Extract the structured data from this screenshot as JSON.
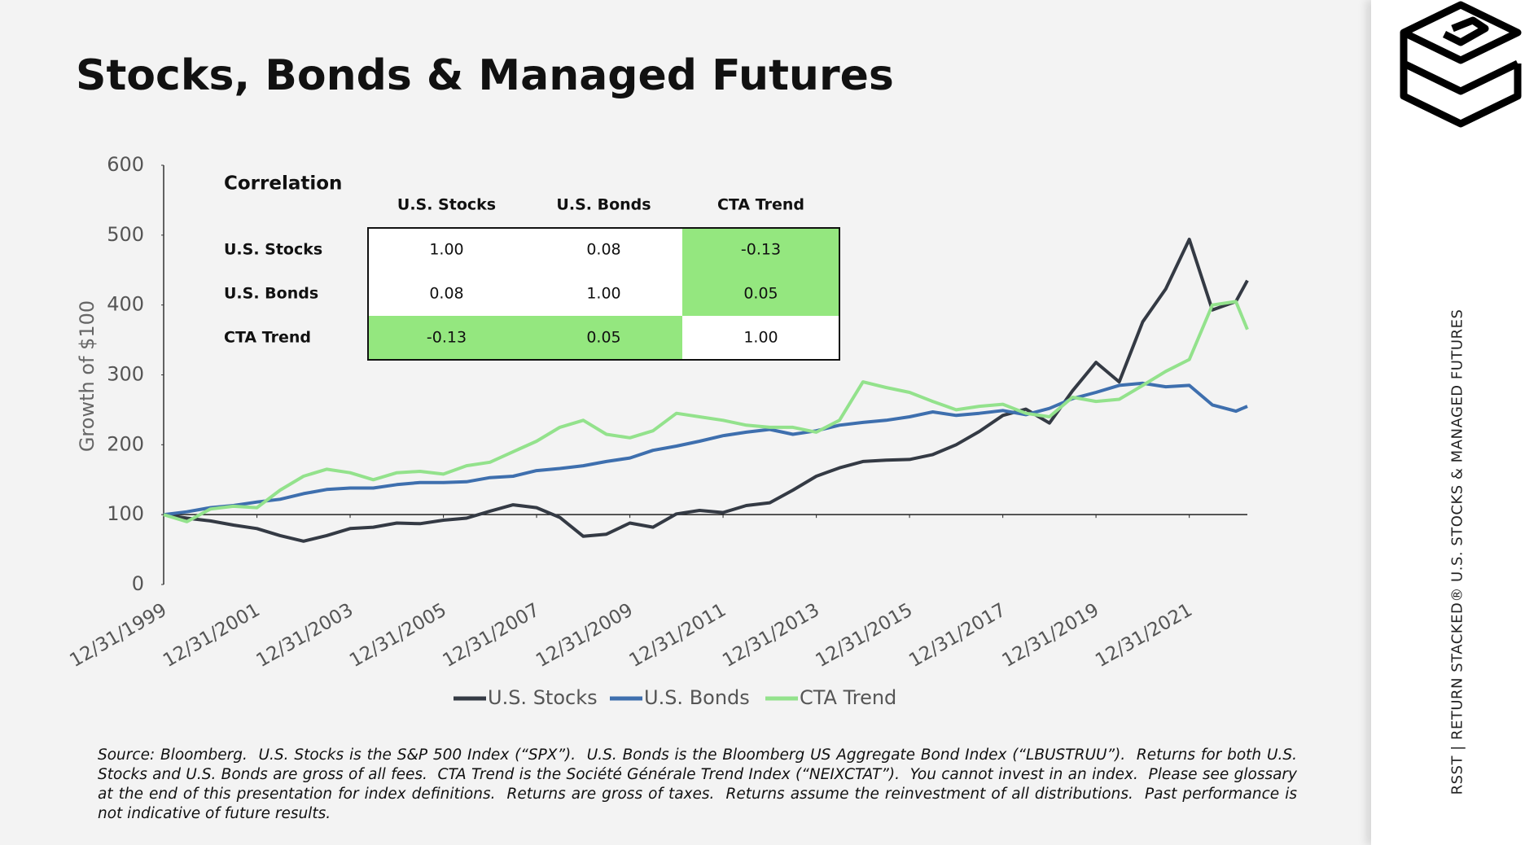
{
  "title": "Stocks, Bonds & Managed Futures",
  "chart_data": {
    "type": "line",
    "ylabel": "Growth of $100",
    "x": [
      "12/31/1999",
      "6/30/2000",
      "12/31/2000",
      "6/30/2001",
      "12/31/2001",
      "6/30/2002",
      "12/31/2002",
      "6/30/2003",
      "12/31/2003",
      "6/30/2004",
      "12/31/2004",
      "6/30/2005",
      "12/31/2005",
      "6/30/2006",
      "12/31/2006",
      "6/30/2007",
      "12/31/2007",
      "6/30/2008",
      "12/31/2008",
      "6/30/2009",
      "12/31/2009",
      "6/30/2010",
      "12/31/2010",
      "6/30/2011",
      "12/31/2011",
      "6/30/2012",
      "12/31/2012",
      "6/30/2013",
      "12/31/2013",
      "6/30/2014",
      "12/31/2014",
      "6/30/2015",
      "12/31/2015",
      "6/30/2016",
      "12/31/2016",
      "6/30/2017",
      "12/31/2017",
      "6/30/2018",
      "12/31/2018",
      "6/30/2019",
      "12/31/2019",
      "6/30/2020",
      "12/31/2020",
      "6/30/2021",
      "12/31/2021",
      "6/30/2022",
      "12/31/2022",
      "3/31/2023"
    ],
    "series": [
      {
        "name": "U.S. Stocks",
        "color": "#343a44",
        "values": [
          100,
          95,
          91,
          85,
          80,
          70,
          62,
          70,
          80,
          82,
          88,
          87,
          92,
          95,
          105,
          114,
          110,
          96,
          69,
          72,
          88,
          82,
          101,
          106,
          103,
          113,
          117,
          135,
          155,
          167,
          176,
          178,
          179,
          186,
          200,
          219,
          242,
          251,
          231,
          277,
          318,
          290,
          376,
          423,
          494,
          393,
          405,
          435
        ]
      },
      {
        "name": "U.S. Bonds",
        "color": "#3e6fae",
        "values": [
          100,
          104,
          110,
          113,
          118,
          122,
          130,
          136,
          138,
          138,
          143,
          146,
          146,
          147,
          153,
          155,
          163,
          166,
          170,
          176,
          181,
          192,
          198,
          205,
          213,
          218,
          222,
          215,
          220,
          228,
          232,
          235,
          240,
          247,
          242,
          245,
          249,
          243,
          252,
          266,
          275,
          285,
          288,
          283,
          285,
          257,
          248,
          255
        ]
      },
      {
        "name": "CTA Trend",
        "color": "#93e28c",
        "values": [
          100,
          90,
          108,
          112,
          110,
          135,
          155,
          165,
          160,
          150,
          160,
          162,
          158,
          170,
          175,
          190,
          205,
          225,
          235,
          215,
          210,
          220,
          245,
          240,
          235,
          228,
          225,
          225,
          218,
          235,
          290,
          282,
          275,
          262,
          250,
          255,
          258,
          245,
          240,
          268,
          262,
          265,
          285,
          305,
          322,
          400,
          405,
          365
        ]
      }
    ],
    "xlim": [
      "12/31/1999",
      "3/31/2023"
    ],
    "xticks": [
      "12/31/1999",
      "12/31/2001",
      "12/31/2003",
      "12/31/2005",
      "12/31/2007",
      "12/31/2009",
      "12/31/2011",
      "12/31/2013",
      "12/31/2015",
      "12/31/2017",
      "12/31/2019",
      "12/31/2021"
    ],
    "ylim": [
      0,
      600
    ],
    "yticks": [
      0,
      100,
      200,
      300,
      400,
      500,
      600
    ],
    "xaxis_crosses": 100,
    "legend": "bottom"
  },
  "correlation": {
    "title": "Correlation",
    "columns": [
      "U.S. Stocks",
      "U.S. Bonds",
      "CTA Trend"
    ],
    "rows": [
      {
        "label": "U.S. Stocks",
        "values": [
          "1.00",
          "0.08",
          "-0.13"
        ]
      },
      {
        "label": "U.S. Bonds",
        "values": [
          "0.08",
          "1.00",
          "0.05"
        ]
      },
      {
        "label": "CTA Trend",
        "values": [
          "-0.13",
          "0.05",
          "1.00"
        ]
      }
    ],
    "highlight_color": "#94e77f",
    "highlight": [
      [
        0,
        2
      ],
      [
        1,
        2
      ],
      [
        2,
        0
      ],
      [
        2,
        1
      ]
    ]
  },
  "footnote": "Source: Bloomberg.  U.S. Stocks is the S&P 500 Index (“SPX”).  U.S. Bonds is the Bloomberg US Aggregate Bond Index (“LBUSTRUU”).  Returns for both U.S. Stocks and U.S. Bonds are gross of all fees.  CTA Trend is the Société Générale Trend Index (“NEIXCTAT”).  You cannot invest in an index.  Please see glossary at the end of this presentation for index definitions.  Returns are gross of taxes.  Returns assume the reinvestment of all distributions.  Past performance is not indicative of future results.",
  "sidebar": "RSST | RETURN STACKED® U.S. STOCKS & MANAGED FUTURES"
}
